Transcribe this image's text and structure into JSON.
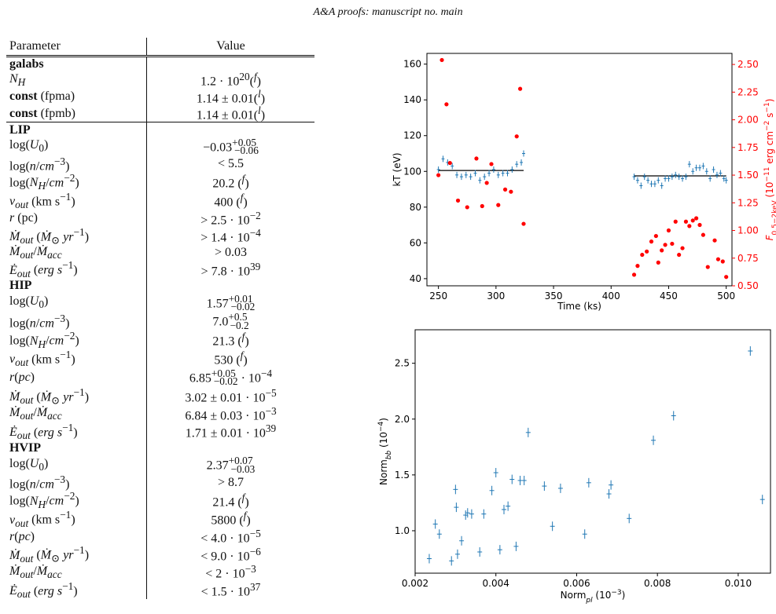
{
  "header": "A&A proofs: manuscript no. main",
  "table": {
    "columns": [
      "Parameter",
      "Value"
    ],
    "rows": [
      {
        "kind": "section",
        "html": "galabs",
        "value": ""
      },
      {
        "kind": "row",
        "html": "<i>N<sub>H</sub></i>",
        "value": "1.2 · 10<sup>20</sup>(<sup><i>f</i></sup>)"
      },
      {
        "kind": "row",
        "html": "<b>const</b> (fpma)",
        "value": "1.14 ± 0.01(<sup><i>l</i></sup>)"
      },
      {
        "kind": "row",
        "html": "<b>const</b> (fpmb)",
        "value": "1.14 ± 0.01(<sup><i>l</i></sup>)"
      },
      {
        "kind": "section",
        "html": "LIP",
        "value": "",
        "sep": true
      },
      {
        "kind": "row",
        "html": "log(<i>U</i><sub>0</sub>)",
        "value": "−0.03<sup>+0.05</sup><sub style=\"margin-left:-28px\">−0.06</sub>"
      },
      {
        "kind": "row",
        "html": "log(<i>n</i>/<i>cm</i><sup>−3</sup>)",
        "value": "&lt; 5.5"
      },
      {
        "kind": "row",
        "html": "log(<i>N<sub>H</sub></i>/<i>cm</i><sup>−2</sup>)",
        "value": "20.2 (<sup><i>f</i></sup>)"
      },
      {
        "kind": "row",
        "html": "<i>v<sub>out</sub></i> (km s<sup>−1</sup>)",
        "value": "400 (<sup><i>f</i></sup>)"
      },
      {
        "kind": "row",
        "html": "<i>r</i> (pc)",
        "value": "&gt; 2.5 · 10<sup>−2</sup>"
      },
      {
        "kind": "row",
        "html": "<i>Ṁ<sub>out</sub></i> (<i>Ṁ</i><sub>⊙</sub> <i>yr</i><sup>−1</sup>)",
        "value": "&gt; 1.4 · 10<sup>−4</sup>"
      },
      {
        "kind": "row",
        "html": "<i>Ṁ<sub>out</sub></i>/<i>Ṁ<sub>acc</sub></i>",
        "value": "&gt; 0.03"
      },
      {
        "kind": "row",
        "html": "<i>Ė<sub>out</sub></i> (<i>erg s</i><sup>−1</sup>)",
        "value": "&gt; 7.8 · 10<sup>39</sup>"
      },
      {
        "kind": "section",
        "html": "HIP",
        "value": ""
      },
      {
        "kind": "row",
        "html": "log(<i>U</i><sub>0</sub>)",
        "value": "1.57<sup>+0.01</sup><sub style=\"margin-left:-28px\">−0.02</sub>"
      },
      {
        "kind": "row",
        "html": "log(<i>n</i>/<i>cm</i><sup>−3</sup>)",
        "value": "7.0<sup>+0.5</sup><sub style=\"margin-left:-22px\">−0.2</sub>"
      },
      {
        "kind": "row",
        "html": "log(<i>N<sub>H</sub></i>/<i>cm</i><sup>−2</sup>)",
        "value": "21.3 (<sup><i>f</i></sup>)"
      },
      {
        "kind": "row",
        "html": "<i>v<sub>out</sub></i> (km s<sup>−1</sup>)",
        "value": "530 (<sup><i>f</i></sup>)"
      },
      {
        "kind": "row",
        "html": "<i>r</i>(<i>pc</i>)",
        "value": "6.85<sup>+0.05</sup><sub style=\"margin-left:-28px\">−0.02</sub> · 10<sup>−4</sup>"
      },
      {
        "kind": "row",
        "html": "<i>Ṁ<sub>out</sub></i> (<i>Ṁ</i><sub>⊙</sub> <i>yr</i><sup>−1</sup>)",
        "value": "3.02 ± 0.01 · 10<sup>−5</sup>"
      },
      {
        "kind": "row",
        "html": "<i>Ṁ<sub>out</sub></i>/<i>Ṁ<sub>acc</sub></i>",
        "value": "6.84 ± 0.03 · 10<sup>−3</sup>"
      },
      {
        "kind": "row",
        "html": "<i>Ė<sub>out</sub></i> (<i>erg s</i><sup>−1</sup>)",
        "value": "1.71 ± 0.01 · 10<sup>39</sup>"
      },
      {
        "kind": "section",
        "html": "HVIP",
        "value": ""
      },
      {
        "kind": "row",
        "html": "log(<i>U</i><sub>0</sub>)",
        "value": "2.37<sup>+0.07</sup><sub style=\"margin-left:-28px\">−0.03</sub>"
      },
      {
        "kind": "row",
        "html": "log(<i>n</i>/<i>cm</i><sup>−3</sup>)",
        "value": "&gt; 8.7"
      },
      {
        "kind": "row",
        "html": "log(<i>N<sub>H</sub></i>/<i>cm</i><sup>−2</sup>)",
        "value": "21.4 (<sup><i>f</i></sup>)"
      },
      {
        "kind": "row",
        "html": "<i>v<sub>out</sub></i> (km s<sup>−1</sup>)",
        "value": "5800 (<sup><i>f</i></sup>)"
      },
      {
        "kind": "row",
        "html": "<i>r</i>(<i>pc</i>)",
        "value": "&lt; 4.0 · 10<sup>−5</sup>"
      },
      {
        "kind": "row",
        "html": "<i>Ṁ<sub>out</sub></i> (<i>Ṁ</i><sub>⊙</sub> <i>yr</i><sup>−1</sup>)",
        "value": "&lt; 9.0 · 10<sup>−6</sup>"
      },
      {
        "kind": "row",
        "html": "<i>Ṁ<sub>out</sub></i>/<i>Ṁ<sub>acc</sub></i>",
        "value": "&lt; 2 · 10<sup>−3</sup>"
      },
      {
        "kind": "row",
        "html": "<i>Ė<sub>out</sub></i> (<i>erg s</i><sup>−1</sup>)",
        "value": "&lt; 1.5 · 10<sup>37</sup>"
      }
    ]
  },
  "chart_data": [
    {
      "type": "scatter",
      "xlabel": "Time (ks)",
      "ylabel": "kT (eV)",
      "y2label": "F0.5−2keV (10−11 erg cm−2 s−1)",
      "xlim": [
        240,
        505
      ],
      "ylim": [
        36,
        166
      ],
      "y2lim": [
        0.5,
        2.6
      ],
      "xticks": [
        "250",
        "300",
        "350",
        "400",
        "450",
        "500"
      ],
      "yticks": [
        "40",
        "60",
        "80",
        "100",
        "120",
        "140",
        "160"
      ],
      "y2ticks": [
        "0.50",
        "0.75",
        "1.00",
        "1.25",
        "1.50",
        "1.75",
        "2.00",
        "2.25",
        "2.50"
      ],
      "colors": {
        "kT": "#1f77b4",
        "flux": "#ff0000",
        "fit": "#000000"
      },
      "fits": [
        {
          "x": [
            250,
            324
          ],
          "y": 100.5
        },
        {
          "x": [
            420,
            500
          ],
          "y": 97.5
        }
      ],
      "series": [
        {
          "name": "kT",
          "x": [
            250,
            254,
            258,
            262,
            266,
            270,
            274,
            278,
            282,
            286,
            290,
            294,
            298,
            302,
            306,
            310,
            314,
            318,
            322,
            324,
            420,
            423,
            426,
            429,
            432,
            435,
            438,
            441,
            444,
            447,
            450,
            453,
            456,
            459,
            462,
            465,
            468,
            471,
            474,
            477,
            480,
            483,
            486,
            489,
            492,
            495,
            498,
            500
          ],
          "y": [
            101,
            107,
            105,
            103,
            98,
            97,
            98,
            97,
            99,
            95,
            97,
            99,
            101,
            98,
            99,
            99,
            101,
            104,
            105,
            110,
            97,
            95,
            92,
            97,
            95,
            93,
            93,
            95,
            92,
            96,
            96,
            97,
            98,
            97,
            96,
            97,
            104,
            100,
            102,
            102,
            103,
            100,
            96,
            101,
            98,
            99,
            96,
            95
          ]
        },
        {
          "name": "flux",
          "x": [
            250,
            253,
            257,
            260,
            267,
            275,
            283,
            288,
            292,
            296,
            302,
            308,
            313,
            318,
            321,
            324,
            420,
            423,
            427,
            431,
            435,
            439,
            441,
            444,
            447,
            450,
            453,
            456,
            459,
            462,
            465,
            468,
            471,
            474,
            477,
            480,
            484,
            490,
            493,
            497,
            500
          ],
          "y": [
            1.5,
            2.54,
            2.14,
            1.61,
            1.27,
            1.21,
            1.65,
            1.22,
            1.43,
            1.6,
            1.23,
            1.37,
            1.35,
            1.85,
            2.28,
            1.06,
            0.6,
            0.68,
            0.78,
            0.81,
            0.9,
            0.95,
            0.71,
            0.82,
            0.87,
            1.0,
            0.88,
            1.08,
            0.78,
            0.84,
            1.08,
            1.04,
            1.09,
            1.11,
            1.05,
            0.96,
            0.67,
            0.91,
            0.74,
            0.72,
            0.58
          ]
        }
      ]
    },
    {
      "type": "scatter",
      "xlabel": "Normpl (10−3)",
      "ylabel": "Normbb (10−4)",
      "xlim": [
        0.002,
        0.0108
      ],
      "ylim": [
        0.62,
        2.8
      ],
      "xticks": [
        "0.002",
        "0.004",
        "0.006",
        "0.008",
        "0.010"
      ],
      "yticks": [
        "1.0",
        "1.5",
        "2.0",
        "2.5"
      ],
      "colors": {
        "points": "#1f77b4"
      },
      "series": [
        {
          "name": "points",
          "x": [
            0.00235,
            0.0025,
            0.0026,
            0.0029,
            0.003,
            0.00302,
            0.00305,
            0.00315,
            0.00325,
            0.0033,
            0.0034,
            0.0036,
            0.0037,
            0.0039,
            0.004,
            0.0041,
            0.0042,
            0.0043,
            0.0044,
            0.0045,
            0.0046,
            0.0047,
            0.0048,
            0.0052,
            0.0054,
            0.0056,
            0.0062,
            0.0063,
            0.0068,
            0.00685,
            0.0073,
            0.0079,
            0.0084,
            0.0103,
            0.0106
          ],
          "y": [
            0.75,
            1.06,
            0.97,
            0.73,
            1.37,
            1.21,
            0.79,
            0.91,
            1.14,
            1.16,
            1.15,
            0.81,
            1.15,
            1.36,
            1.52,
            0.83,
            1.19,
            1.22,
            1.46,
            0.86,
            1.45,
            1.45,
            1.88,
            1.4,
            1.04,
            1.38,
            0.97,
            1.43,
            1.33,
            1.41,
            1.11,
            1.81,
            2.03,
            2.61,
            1.28
          ]
        }
      ]
    }
  ]
}
